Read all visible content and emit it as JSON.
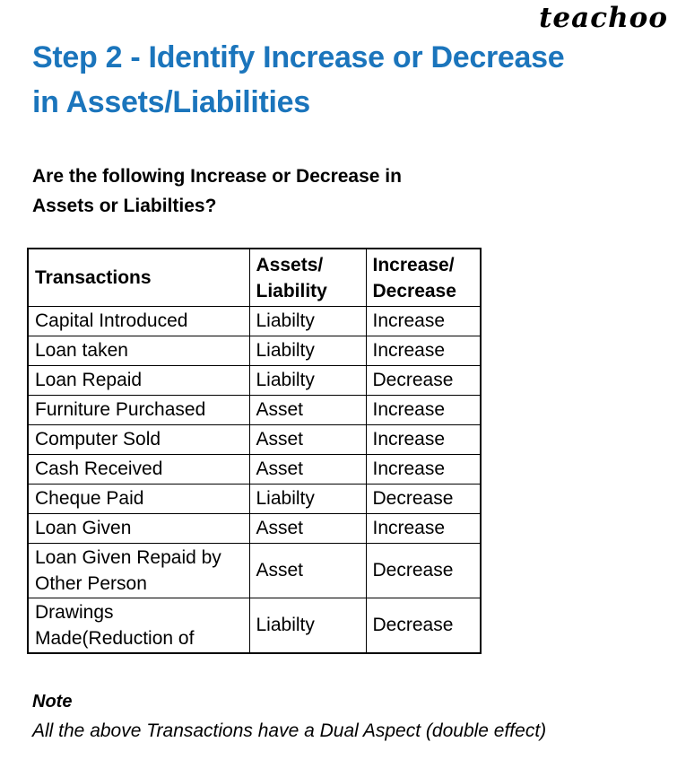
{
  "colors": {
    "heading_blue": "#1B75BC",
    "text": "#000000",
    "border": "#000000",
    "background": "#FFFFFF"
  },
  "logo": {
    "text": "teachoo"
  },
  "heading": {
    "text": "Step 2 - Identify Increase or Decrease\nin Assets/Liabilities"
  },
  "subheading": {
    "text": "Are the following Increase or Decrease in\nAssets or Liabilties?"
  },
  "table": {
    "headers": [
      {
        "label": "Transactions"
      },
      {
        "label": "Assets/\nLiability"
      },
      {
        "label": "Increase/\nDecrease"
      }
    ],
    "rows": [
      {
        "transaction": "Capital Introduced",
        "asset_liability": "Liabilty",
        "increase_decrease": "Increase"
      },
      {
        "transaction": "Loan taken",
        "asset_liability": "Liabilty",
        "increase_decrease": "Increase"
      },
      {
        "transaction": "Loan Repaid",
        "asset_liability": "Liabilty",
        "increase_decrease": "Decrease"
      },
      {
        "transaction": "Furniture Purchased",
        "asset_liability": "Asset",
        "increase_decrease": "Increase"
      },
      {
        "transaction": "Computer Sold",
        "asset_liability": "Asset",
        "increase_decrease": "Increase"
      },
      {
        "transaction": "Cash Received",
        "asset_liability": "Asset",
        "increase_decrease": "Increase"
      },
      {
        "transaction": "Cheque Paid",
        "asset_liability": "Liabilty",
        "increase_decrease": "Decrease"
      },
      {
        "transaction": "Loan Given",
        "asset_liability": "Asset",
        "increase_decrease": "Increase"
      },
      {
        "transaction": "Loan Given Repaid by\nOther Person",
        "asset_liability": "Asset",
        "increase_decrease": "Decrease"
      },
      {
        "transaction": "Drawings\nMade(Reduction of",
        "asset_liability": "Liabilty",
        "increase_decrease": "Decrease"
      }
    ]
  },
  "note": {
    "title": "Note",
    "text": "All the above Transactions have a Dual Aspect (double effect)"
  }
}
